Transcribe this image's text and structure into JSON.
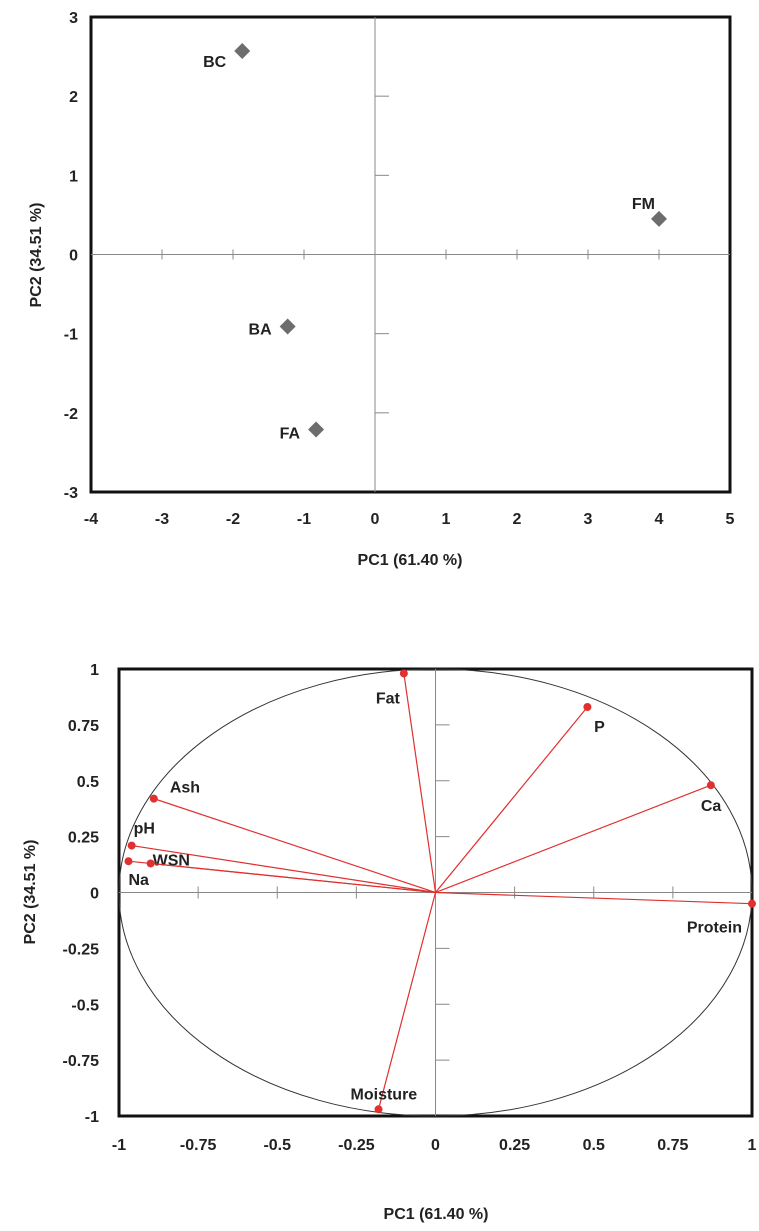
{
  "chart_data": [
    {
      "type": "scatter",
      "xlabel": "PC1 (61.40 %)",
      "ylabel": "PC2 (34.51 %)",
      "xlim": [
        -4,
        5
      ],
      "ylim": [
        -3,
        3
      ],
      "x_ticks": [
        "-4",
        "-3",
        "-2",
        "-1",
        "0",
        "1",
        "2",
        "3",
        "4",
        "5"
      ],
      "y_ticks": [
        "3",
        "2",
        "1",
        "0",
        "-1",
        "-2",
        "-3"
      ],
      "grid": false,
      "marker_color": "#6d6d6d",
      "points": [
        {
          "label": "BC",
          "x": -1.87,
          "y": 2.57
        },
        {
          "label": "FM",
          "x": 4.0,
          "y": 0.45
        },
        {
          "label": "BA",
          "x": -1.23,
          "y": -0.91
        },
        {
          "label": "FA",
          "x": -0.83,
          "y": -2.21
        }
      ]
    },
    {
      "type": "scatter",
      "subtype": "loading-plot",
      "xlabel": "PC1 (61.40 %)",
      "ylabel": "PC2 (34.51 %)",
      "xlim": [
        -1,
        1
      ],
      "ylim": [
        -1,
        1
      ],
      "x_ticks": [
        "-1",
        "-0.75",
        "-0.5",
        "-0.25",
        "0",
        "0.25",
        "0.5",
        "0.75",
        "1"
      ],
      "y_ticks": [
        "1",
        "0.75",
        "0.5",
        "0.25",
        "0",
        "-0.25",
        "-0.5",
        "-0.75",
        "-1"
      ],
      "grid": false,
      "unit_circle": true,
      "vector_color": "#e03030",
      "points": [
        {
          "label": "Fat",
          "x": -0.1,
          "y": 0.98
        },
        {
          "label": "P",
          "x": 0.48,
          "y": 0.83
        },
        {
          "label": "Ash",
          "x": -0.89,
          "y": 0.42
        },
        {
          "label": "Ca",
          "x": 0.87,
          "y": 0.48
        },
        {
          "label": "pH",
          "x": -0.96,
          "y": 0.21
        },
        {
          "label": "WSN",
          "x": -0.9,
          "y": 0.13
        },
        {
          "label": "Na",
          "x": -0.97,
          "y": 0.14
        },
        {
          "label": "Protein",
          "x": 1.0,
          "y": -0.05
        },
        {
          "label": "Moisture",
          "x": -0.18,
          "y": -0.97
        }
      ]
    }
  ]
}
